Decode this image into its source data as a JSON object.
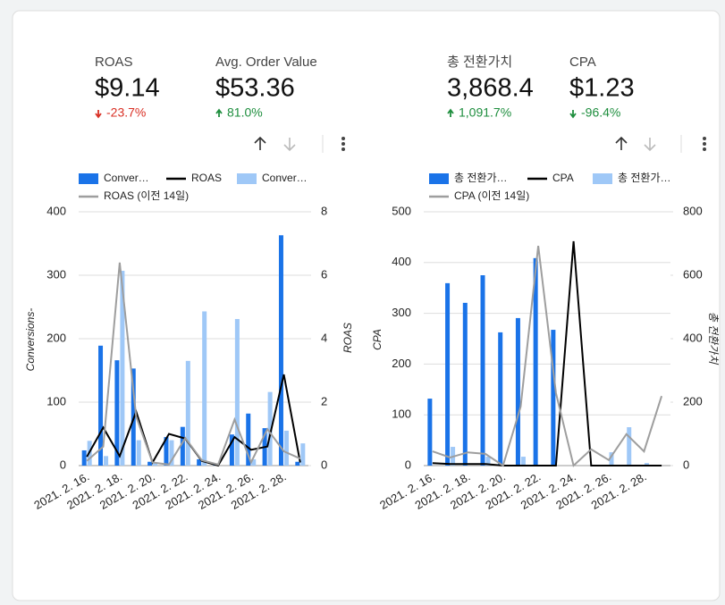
{
  "scorecards": [
    {
      "label": "ROAS",
      "value": "$9.14",
      "change": "-23.7%",
      "trend": "down",
      "color": "#d93025"
    },
    {
      "label": "Avg. Order Value",
      "value": "$53.36",
      "change": "81.0%",
      "trend": "up",
      "color": "#1e8e3e"
    },
    {
      "label": "총 전환가치",
      "value": "3,868.4",
      "change": "1,091.7%",
      "trend": "up",
      "color": "#1e8e3e"
    },
    {
      "label": "CPA",
      "value": "$1.23",
      "change": "-96.4%",
      "trend": "down",
      "color": "#1e8e3e"
    }
  ],
  "chart_data": [
    {
      "type": "combo",
      "categories": [
        "2021. 2. 16.",
        null,
        "2021. 2. 18.",
        null,
        "2021. 2. 20.",
        null,
        "2021. 2. 22.",
        null,
        "2021. 2. 24.",
        null,
        "2021. 2. 26.",
        null,
        "2021. 2. 28.",
        null
      ],
      "ylabel": "Conversions-",
      "y2label": "ROAS",
      "ylim": [
        0,
        400
      ],
      "yticks": [
        0,
        100,
        200,
        300,
        400
      ],
      "y2lim": [
        0,
        8
      ],
      "y2ticks": [
        0,
        2,
        4,
        6,
        8
      ],
      "grid": true,
      "series": [
        {
          "name": "Conver…",
          "kind": "bar",
          "axis": "y",
          "color": "#1a73e8",
          "values": [
            24,
            189,
            166,
            153,
            6,
            45,
            61,
            10,
            1,
            49,
            82,
            59,
            363,
            6
          ]
        },
        {
          "name": "ROAS",
          "kind": "line",
          "axis": "y2",
          "color": "#000000",
          "values": [
            0.28,
            1.2,
            0.3,
            1.7,
            0.1,
            1.0,
            0.85,
            0.15,
            0,
            0.9,
            0.5,
            0.6,
            2.87,
            0.1
          ]
        },
        {
          "name": "Conver…",
          "kind": "bar",
          "axis": "y",
          "color": "#9fc8f7",
          "values": [
            39,
            15,
            307,
            40,
            5,
            40,
            165,
            243,
            0,
            231,
            10,
            116,
            55,
            35
          ]
        },
        {
          "name": "ROAS (이전 14일)",
          "kind": "line",
          "axis": "y2",
          "color": "#9e9e9e",
          "values": [
            0.15,
            0.6,
            6.4,
            1.55,
            0.1,
            0.03,
            0.87,
            0.17,
            0.03,
            1.45,
            0.1,
            1.15,
            0.45,
            0.22
          ]
        }
      ]
    },
    {
      "type": "combo",
      "categories": [
        "2021. 2. 16.",
        null,
        "2021. 2. 18.",
        null,
        "2021. 2. 20.",
        null,
        "2021. 2. 22.",
        null,
        "2021. 2. 24.",
        null,
        "2021. 2. 26.",
        null,
        "2021. 2. 28.",
        null
      ],
      "ylabel": "CPA",
      "y2label": "총 전환가치",
      "ylim": [
        0,
        500
      ],
      "yticks": [
        0,
        100,
        200,
        300,
        400,
        500
      ],
      "y2lim": [
        0,
        800
      ],
      "y2ticks": [
        0,
        200,
        400,
        600,
        800
      ],
      "grid": true,
      "series": [
        {
          "name": "총 전환가…",
          "kind": "bar",
          "axis": "y2",
          "color": "#1a73e8",
          "values": [
            211,
            575,
            513,
            600,
            420,
            465,
            654,
            428,
            0,
            0,
            0,
            0,
            0,
            0
          ]
        },
        {
          "name": "CPA",
          "kind": "line",
          "axis": "y",
          "color": "#000000",
          "values": [
            5,
            3,
            3,
            3,
            0,
            0,
            0,
            0,
            442,
            0,
            0,
            0,
            0,
            0
          ]
        },
        {
          "name": "총 전환가…",
          "kind": "bar",
          "axis": "y2",
          "color": "#9fc8f7",
          "values": [
            0,
            59,
            0,
            28,
            0,
            28,
            0,
            0,
            0,
            0,
            42,
            121,
            8,
            0
          ]
        },
        {
          "name": "CPA (이전 14일)",
          "kind": "line",
          "axis": "y",
          "color": "#9e9e9e",
          "values": [
            28,
            16,
            26,
            23,
            0,
            116,
            433,
            143,
            0,
            32,
            11,
            62,
            28,
            137
          ]
        }
      ]
    }
  ]
}
